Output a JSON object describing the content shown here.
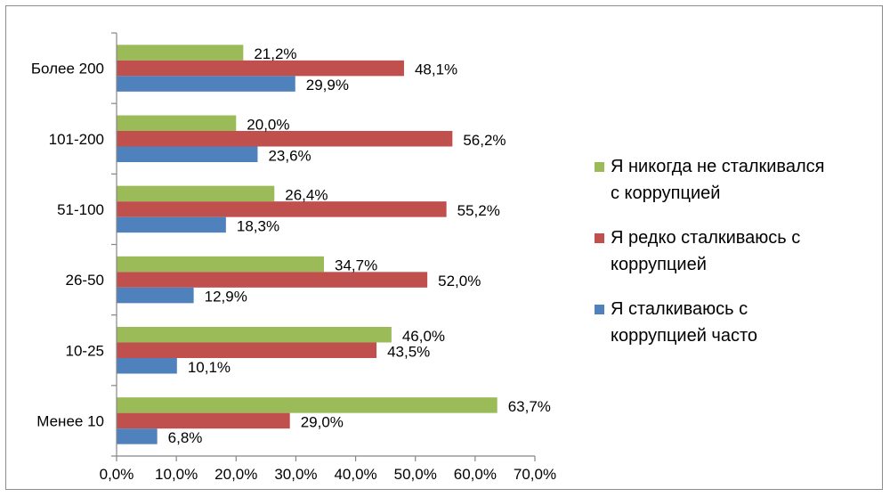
{
  "chart_data": {
    "type": "bar",
    "orientation": "horizontal",
    "categories": [
      "Более 200",
      "101-200",
      "51-100",
      "26-50",
      "10-25",
      "Менее 10"
    ],
    "series": [
      {
        "name": "Я никогда не сталкивался с коррупцией",
        "legend_lines": [
          "Я никогда не сталкивался",
          "с коррупцией"
        ],
        "color": "#9bbb59",
        "values": [
          21.2,
          20.0,
          26.4,
          34.7,
          46.0,
          63.7
        ],
        "labels": [
          "21,2%",
          "20,0%",
          "26,4%",
          "34,7%",
          "46,0%",
          "63,7%"
        ]
      },
      {
        "name": "Я редко сталкиваюсь с коррупцией",
        "legend_lines": [
          "Я редко сталкиваюсь с",
          "коррупцией"
        ],
        "color": "#c0504d",
        "values": [
          48.1,
          56.2,
          55.2,
          52.0,
          43.5,
          29.0
        ],
        "labels": [
          "48,1%",
          "56,2%",
          "55,2%",
          "52,0%",
          "43,5%",
          "29,0%"
        ]
      },
      {
        "name": "Я сталкиваюсь с коррупцией часто",
        "legend_lines": [
          "Я сталкиваюсь с",
          "коррупцией часто"
        ],
        "color": "#4f81bd",
        "values": [
          29.9,
          23.6,
          18.3,
          12.9,
          10.1,
          6.8
        ],
        "labels": [
          "29,9%",
          "23,6%",
          "18,3%",
          "12,9%",
          "10,1%",
          "6,8%"
        ]
      }
    ],
    "xlim": [
      0,
      70
    ],
    "x_ticks": [
      0,
      10,
      20,
      30,
      40,
      50,
      60,
      70
    ],
    "x_tick_labels": [
      "0,0%",
      "10,0%",
      "20,0%",
      "30,0%",
      "40,0%",
      "50,0%",
      "60,0%",
      "70,0%"
    ],
    "grid": false,
    "legend_position": "right",
    "title": "",
    "xlabel": "",
    "ylabel": ""
  }
}
